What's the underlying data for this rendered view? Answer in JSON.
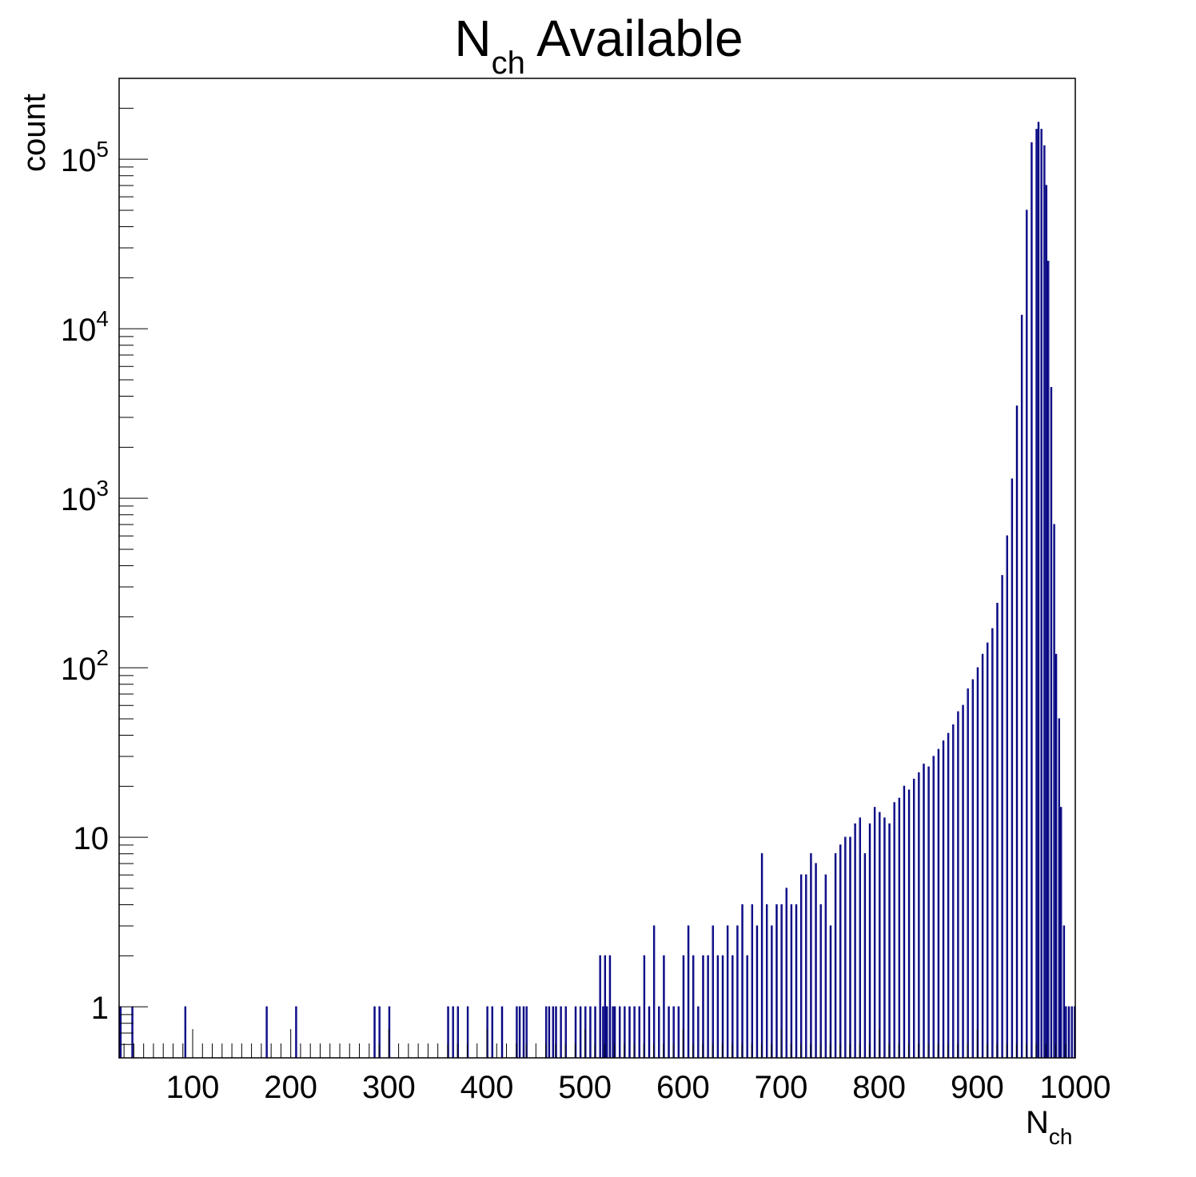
{
  "chart_data": {
    "type": "bar",
    "title": {
      "main": "N",
      "sub": "ch",
      "rest": " Available"
    },
    "xlabel": {
      "main": "N",
      "sub": "ch"
    },
    "ylabel": "count",
    "xlim": [
      25,
      1000
    ],
    "ylim": [
      0.5,
      300000
    ],
    "log_y": true,
    "grid": false,
    "legend": "none",
    "x_ticks": [
      100,
      200,
      300,
      400,
      500,
      600,
      700,
      800,
      900,
      1000
    ],
    "y_ticks": [
      {
        "value": 1,
        "label": "1",
        "exp": ""
      },
      {
        "value": 10,
        "label": "10",
        "exp": ""
      },
      {
        "value": 100,
        "label": "10",
        "exp": "2"
      },
      {
        "value": 1000,
        "label": "10",
        "exp": "3"
      },
      {
        "value": 10000,
        "label": "10",
        "exp": "4"
      },
      {
        "value": 100000,
        "label": "10",
        "exp": "5"
      }
    ],
    "colors": {
      "fill": "#ccccf7",
      "line": "#000080",
      "frame": "#000000"
    },
    "series": [
      {
        "bin_width": 1,
        "x": [
          25,
          26,
          38,
          92,
          175,
          205,
          285,
          290,
          300,
          360,
          365,
          370,
          380,
          400,
          405,
          415,
          430,
          433,
          437,
          440,
          460,
          463,
          467,
          470,
          475,
          480,
          490,
          495,
          500,
          505,
          510,
          515,
          518,
          520,
          522,
          525,
          528,
          530,
          535,
          540,
          545,
          550,
          555,
          560,
          565,
          570,
          575,
          580,
          585,
          590,
          595,
          600,
          605,
          610,
          615,
          620,
          625,
          630,
          635,
          640,
          645,
          650,
          655,
          660,
          665,
          670,
          675,
          680,
          685,
          690,
          695,
          700,
          705,
          710,
          715,
          720,
          725,
          730,
          735,
          740,
          745,
          750,
          755,
          760,
          765,
          770,
          775,
          780,
          785,
          790,
          795,
          800,
          805,
          810,
          815,
          820,
          825,
          830,
          835,
          840,
          845,
          850,
          855,
          860,
          865,
          870,
          875,
          880,
          885,
          890,
          895,
          900,
          905,
          910,
          915,
          920,
          925,
          930,
          935,
          940,
          945,
          950,
          955,
          960,
          962,
          965,
          968,
          970,
          972,
          975,
          978,
          980,
          983,
          985,
          988,
          990,
          993,
          996,
          999
        ],
        "values": [
          1,
          1,
          1,
          1,
          1,
          1,
          1,
          1,
          1,
          1,
          1,
          1,
          1,
          1,
          1,
          1,
          1,
          1,
          1,
          1,
          1,
          1,
          1,
          1,
          1,
          1,
          1,
          1,
          1,
          1,
          1,
          2,
          1,
          2,
          1,
          2,
          1,
          1,
          1,
          1,
          1,
          1,
          1,
          2,
          1,
          3,
          1,
          2,
          1,
          1,
          1,
          2,
          3,
          2,
          1,
          2,
          2,
          3,
          2,
          2,
          3,
          2,
          3,
          4,
          2,
          4,
          3,
          8,
          4,
          3,
          4,
          4,
          5,
          4,
          4,
          6,
          6,
          8,
          7,
          4,
          6,
          3,
          8,
          9,
          10,
          10,
          12,
          13,
          8,
          12,
          15,
          14,
          13,
          12,
          16,
          17,
          20,
          19,
          22,
          24,
          27,
          26,
          30,
          33,
          37,
          41,
          46,
          55,
          60,
          75,
          85,
          100,
          120,
          140,
          170,
          240,
          350,
          600,
          1300,
          3500,
          12000,
          50000,
          125000,
          150000,
          165000,
          150000,
          120000,
          70000,
          25000,
          4500,
          700,
          120,
          50,
          15,
          3,
          1,
          1,
          1,
          1
        ]
      }
    ]
  }
}
